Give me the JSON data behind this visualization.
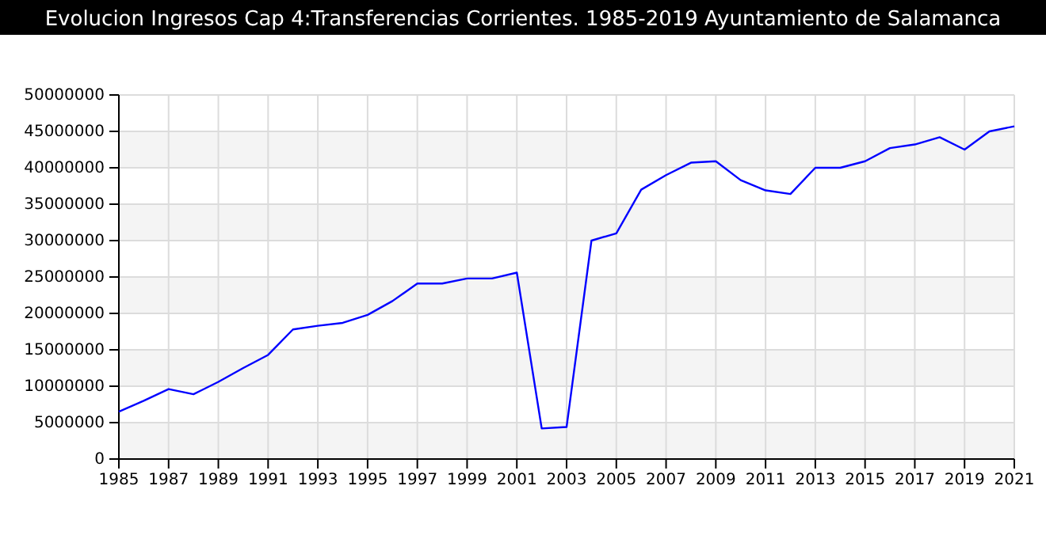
{
  "chart_data": {
    "type": "line",
    "title": "Evolucion Ingresos Cap 4:Transferencias Corrientes. 1985-2019 Ayuntamiento de Salamanca",
    "x": [
      1985,
      1986,
      1987,
      1988,
      1989,
      1990,
      1991,
      1992,
      1993,
      1994,
      1995,
      1996,
      1997,
      1998,
      1999,
      2000,
      2001,
      2002,
      2003,
      2004,
      2005,
      2006,
      2007,
      2008,
      2009,
      2010,
      2011,
      2012,
      2013,
      2014,
      2015,
      2016,
      2017,
      2018,
      2019,
      2020,
      2021
    ],
    "series": [
      {
        "color": "#0000ff",
        "values": [
          6500000,
          8000000,
          9600000,
          8900000,
          10600000,
          12500000,
          14300000,
          17800000,
          18300000,
          18700000,
          19800000,
          21700000,
          24100000,
          24100000,
          24800000,
          24800000,
          25600000,
          4200000,
          4400000,
          30000000,
          31000000,
          37000000,
          39000000,
          40700000,
          40900000,
          38300000,
          36900000,
          36400000,
          40000000,
          40000000,
          40900000,
          42700000,
          43200000,
          44200000,
          42500000,
          45000000,
          45700000
        ]
      }
    ],
    "xlim": [
      1985,
      2021
    ],
    "xticks": [
      1985,
      1987,
      1989,
      1991,
      1993,
      1995,
      1997,
      1999,
      2001,
      2003,
      2005,
      2007,
      2009,
      2011,
      2013,
      2015,
      2017,
      2019,
      2021
    ],
    "ylim": [
      0,
      50000000
    ],
    "yticks": [
      0,
      5000000,
      10000000,
      15000000,
      20000000,
      25000000,
      30000000,
      35000000,
      40000000,
      45000000,
      50000000
    ],
    "grid": true,
    "marker": "none",
    "line_style": "solid"
  }
}
